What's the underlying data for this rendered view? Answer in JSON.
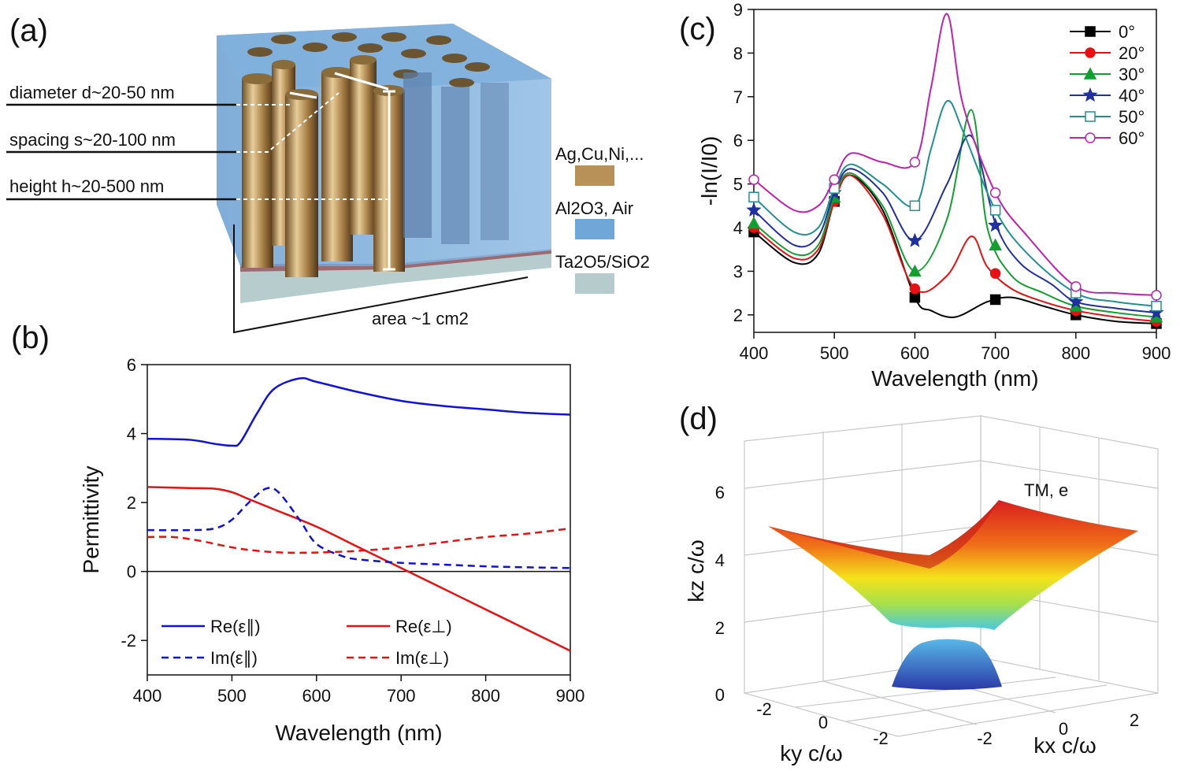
{
  "panels": {
    "a": "(a)",
    "b": "(b)",
    "c": "(c)",
    "d": "(d)"
  },
  "panel_a": {
    "diameter": "diameter d~20-50 nm",
    "spacing": "spacing s~20-100 nm",
    "height": "height h~20-500 nm",
    "legend": [
      "Ag,Cu,Ni,...",
      "Al2O3, Air",
      "Ta2O5/SiO2"
    ],
    "area": "area ~1 cm2",
    "colors": {
      "metal": "#b8955c",
      "matrix": "#6fa8d8",
      "substrate": "#b8cfcf"
    }
  },
  "chart_data": [
    {
      "id": "b",
      "type": "line",
      "xlabel": "Wavelength (nm)",
      "ylabel": "Permittivity",
      "xlim": [
        400,
        900
      ],
      "ylim": [
        -3,
        6
      ],
      "xticks": [
        400,
        500,
        600,
        700,
        800,
        900
      ],
      "yticks": [
        -2,
        0,
        2,
        4,
        6
      ],
      "series": [
        {
          "name": "Re(ε∥)",
          "color": "#1010e0",
          "dash": false,
          "x": [
            400,
            450,
            480,
            500,
            510,
            530,
            550,
            580,
            600,
            650,
            700,
            750,
            800,
            850,
            900
          ],
          "y": [
            3.85,
            3.82,
            3.7,
            3.65,
            3.75,
            4.6,
            5.3,
            5.6,
            5.5,
            5.2,
            4.95,
            4.8,
            4.7,
            4.6,
            4.55
          ]
        },
        {
          "name": "Re(ε⊥)",
          "color": "#e81010",
          "dash": false,
          "x": [
            400,
            450,
            480,
            500,
            520,
            550,
            600,
            650,
            700,
            750,
            800,
            850,
            900
          ],
          "y": [
            2.45,
            2.42,
            2.4,
            2.3,
            2.1,
            1.8,
            1.3,
            0.7,
            0.1,
            -0.5,
            -1.1,
            -1.7,
            -2.3
          ]
        },
        {
          "name": "Im(ε∥)",
          "color": "#1010e0",
          "dash": true,
          "x": [
            400,
            450,
            480,
            500,
            520,
            540,
            555,
            580,
            600,
            630,
            650,
            700,
            750,
            800,
            850,
            900
          ],
          "y": [
            1.2,
            1.2,
            1.25,
            1.5,
            2.0,
            2.4,
            2.3,
            1.5,
            0.8,
            0.45,
            0.35,
            0.25,
            0.2,
            0.15,
            0.12,
            0.1
          ]
        },
        {
          "name": "Im(ε⊥)",
          "color": "#e81010",
          "dash": true,
          "x": [
            400,
            430,
            460,
            500,
            530,
            560,
            600,
            650,
            700,
            750,
            800,
            850,
            900
          ],
          "y": [
            1.0,
            1.0,
            0.9,
            0.7,
            0.6,
            0.55,
            0.55,
            0.6,
            0.7,
            0.85,
            1.0,
            1.1,
            1.25
          ]
        }
      ],
      "legend": [
        "Re(ε∥)",
        "Re(ε⊥)",
        "Im(ε∥)",
        "Im(ε⊥)"
      ]
    },
    {
      "id": "c",
      "type": "line",
      "xlabel": "Wavelength (nm)",
      "ylabel": "-ln(I/I0)",
      "xlim": [
        400,
        900
      ],
      "ylim": [
        1.6,
        9
      ],
      "xticks": [
        400,
        500,
        600,
        700,
        800,
        900
      ],
      "yticks": [
        2,
        3,
        4,
        5,
        6,
        7,
        8,
        9
      ],
      "series": [
        {
          "name": "0°",
          "color": "#000000",
          "marker": "square-filled",
          "x": [
            400,
            450,
            480,
            500,
            520,
            560,
            600,
            620,
            650,
            690,
            720,
            760,
            800,
            850,
            900
          ],
          "y": [
            3.9,
            3.2,
            3.4,
            4.6,
            5.2,
            4.4,
            2.4,
            2.1,
            1.95,
            2.3,
            2.4,
            2.2,
            2.0,
            1.85,
            1.8
          ],
          "markers_x": [
            400,
            500,
            600,
            700,
            800,
            900
          ],
          "markers_y": [
            3.9,
            4.6,
            2.4,
            2.35,
            2.0,
            1.8
          ]
        },
        {
          "name": "20°",
          "color": "#e81010",
          "marker": "circle-filled",
          "x": [
            400,
            450,
            480,
            500,
            520,
            560,
            600,
            640,
            670,
            690,
            720,
            760,
            800,
            850,
            900
          ],
          "y": [
            4.0,
            3.3,
            3.5,
            4.6,
            5.2,
            4.3,
            2.6,
            2.9,
            3.8,
            3.1,
            2.6,
            2.3,
            2.1,
            1.95,
            1.85
          ],
          "markers_x": [
            400,
            500,
            600,
            700,
            800,
            900
          ],
          "markers_y": [
            4.0,
            4.6,
            2.6,
            2.95,
            2.1,
            1.85
          ]
        },
        {
          "name": "30°",
          "color": "#10a030",
          "marker": "triangle-filled",
          "x": [
            400,
            450,
            480,
            500,
            520,
            560,
            600,
            640,
            670,
            690,
            720,
            760,
            800,
            850,
            900
          ],
          "y": [
            4.1,
            3.4,
            3.6,
            4.7,
            5.25,
            4.5,
            3.0,
            4.2,
            6.7,
            4.0,
            2.9,
            2.5,
            2.2,
            2.05,
            1.95
          ],
          "markers_x": [
            400,
            500,
            600,
            700,
            800,
            900
          ],
          "markers_y": [
            4.1,
            4.7,
            3.0,
            3.6,
            2.2,
            1.95
          ]
        },
        {
          "name": "40°",
          "color": "#2030a0",
          "marker": "star-filled",
          "x": [
            400,
            450,
            480,
            500,
            520,
            560,
            600,
            640,
            670,
            700,
            730,
            770,
            800,
            850,
            900
          ],
          "y": [
            4.4,
            3.6,
            3.8,
            4.8,
            5.35,
            4.8,
            3.7,
            5.0,
            6.1,
            4.1,
            3.2,
            2.7,
            2.3,
            2.15,
            2.05
          ],
          "markers_x": [
            400,
            500,
            600,
            700,
            800,
            900
          ],
          "markers_y": [
            4.4,
            4.8,
            3.7,
            4.05,
            2.3,
            2.05
          ]
        },
        {
          "name": "50°",
          "color": "#209090",
          "marker": "square-open",
          "x": [
            400,
            450,
            480,
            500,
            520,
            560,
            600,
            620,
            640,
            660,
            700,
            740,
            800,
            850,
            900
          ],
          "y": [
            4.7,
            3.9,
            4.0,
            4.9,
            5.45,
            5.0,
            4.5,
            5.8,
            6.9,
            6.2,
            4.4,
            3.4,
            2.5,
            2.3,
            2.2
          ],
          "markers_x": [
            400,
            500,
            600,
            700,
            800,
            900
          ],
          "markers_y": [
            4.7,
            4.9,
            4.5,
            4.4,
            2.5,
            2.2
          ]
        },
        {
          "name": "60°",
          "color": "#c020b0",
          "marker": "circle-open",
          "x": [
            400,
            450,
            480,
            500,
            520,
            560,
            600,
            620,
            640,
            660,
            700,
            740,
            800,
            850,
            900
          ],
          "y": [
            5.1,
            4.4,
            4.5,
            5.1,
            5.7,
            5.5,
            5.5,
            7.2,
            8.9,
            6.8,
            4.8,
            3.8,
            2.65,
            2.5,
            2.45
          ],
          "markers_x": [
            400,
            500,
            600,
            700,
            800,
            900
          ],
          "markers_y": [
            5.1,
            5.1,
            5.5,
            4.8,
            2.65,
            2.45
          ]
        }
      ],
      "legend": [
        "0°",
        "20°",
        "30°",
        "40°",
        "50°",
        "60°"
      ]
    },
    {
      "id": "d",
      "type": "surface",
      "zlabel": "kz c/ω",
      "xlabel": "kx c/ω",
      "ylabel": "ky c/ω",
      "annotation": "TM, e",
      "zticks": [
        0,
        2,
        4,
        6
      ],
      "xticks": [
        -2,
        0,
        2
      ],
      "yticks": [
        -2,
        0,
        -2
      ]
    }
  ]
}
